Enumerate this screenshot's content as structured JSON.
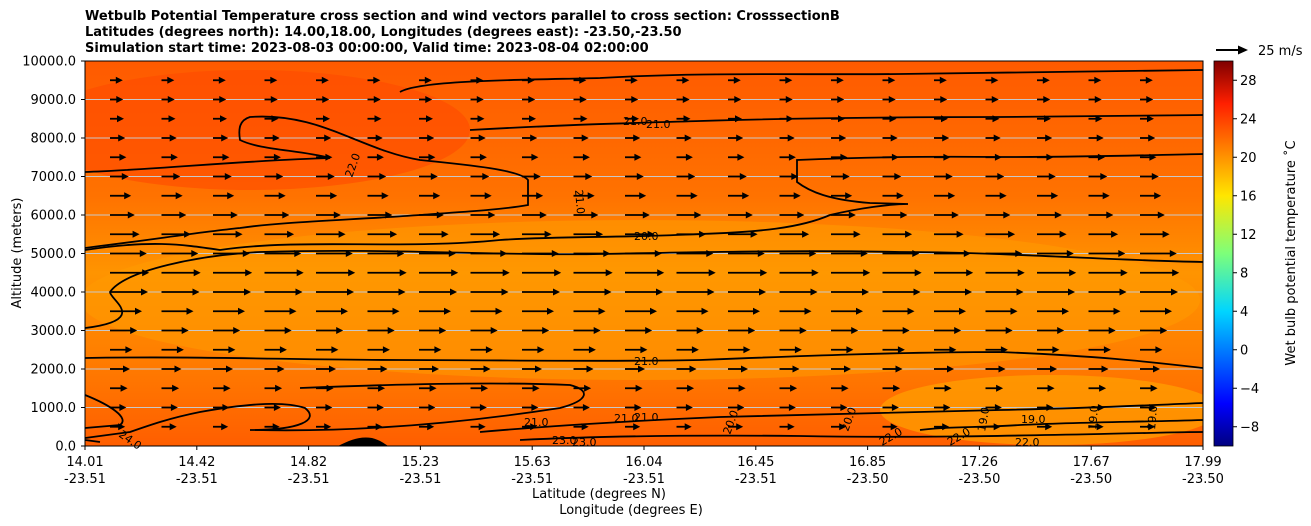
{
  "titles": [
    "Wetbulb Potential Temperature cross section and wind vectors parallel to cross section: CrosssectionB",
    "Latitudes (degrees north): 14.00,18.00, Longitudes (degrees east): -23.50,-23.50",
    "Simulation start time: 2023-08-03 00:00:00, Valid time: 2023-08-04 02:00:00"
  ],
  "chart_data": {
    "type": "heatmap",
    "subtype": "cross-section filled contour with wind vectors",
    "ylabel": "Altitude (meters)",
    "xlabel_lines": [
      "Latitude (degrees N)",
      "Longitude (degrees E)"
    ],
    "ylim": [
      0,
      10000
    ],
    "y_ticks": [
      "0.0",
      "1000.0",
      "2000.0",
      "3000.0",
      "4000.0",
      "5000.0",
      "6000.0",
      "7000.0",
      "8000.0",
      "9000.0",
      "10000.0"
    ],
    "x_ticks": [
      {
        "lat": "14.01",
        "lon": "-23.51"
      },
      {
        "lat": "14.42",
        "lon": "-23.51"
      },
      {
        "lat": "14.82",
        "lon": "-23.51"
      },
      {
        "lat": "15.23",
        "lon": "-23.51"
      },
      {
        "lat": "15.63",
        "lon": "-23.51"
      },
      {
        "lat": "16.04",
        "lon": "-23.51"
      },
      {
        "lat": "16.45",
        "lon": "-23.51"
      },
      {
        "lat": "16.85",
        "lon": "-23.50"
      },
      {
        "lat": "17.26",
        "lon": "-23.50"
      },
      {
        "lat": "17.67",
        "lon": "-23.50"
      },
      {
        "lat": "17.99",
        "lon": "-23.50"
      }
    ],
    "grid": "horizontal",
    "colorbar": {
      "label": "Wet bulb potential temperature ˚C",
      "range": [
        -10,
        30
      ],
      "ticks": [
        "28",
        "24",
        "20",
        "16",
        "12",
        "8",
        "4",
        "0",
        "−4",
        "−8"
      ],
      "colormap": "jet"
    },
    "quiver_key": {
      "label": "25 m/s"
    },
    "contour_labels": [
      "21.0",
      "21.0",
      "22.0",
      "21.0",
      "20.0",
      "21.0",
      "21.0",
      "21.0",
      "21.0",
      "20.0",
      "20.0",
      "22.0",
      "22.0",
      "19.0",
      "19.0",
      "22.0",
      "19.0",
      "19.0",
      "24.0",
      "23.0",
      "23.0"
    ],
    "wind": {
      "rows_altitude_m": [
        500,
        1000,
        1500,
        2000,
        2500,
        3000,
        3500,
        4000,
        4500,
        5000,
        5500,
        6000,
        6500,
        7000,
        7500,
        8000,
        8500,
        9000,
        9500
      ],
      "relative_speed": [
        0.3,
        0.35,
        0.4,
        0.5,
        0.6,
        0.8,
        1.0,
        1.25,
        1.3,
        1.2,
        0.9,
        0.7,
        0.55,
        0.45,
        0.35,
        0.3,
        0.25,
        0.22,
        0.2
      ]
    },
    "colors": {
      "background_field": "#ff7a00",
      "upper_field": "#ff5a00",
      "terrain": "#000000"
    }
  }
}
